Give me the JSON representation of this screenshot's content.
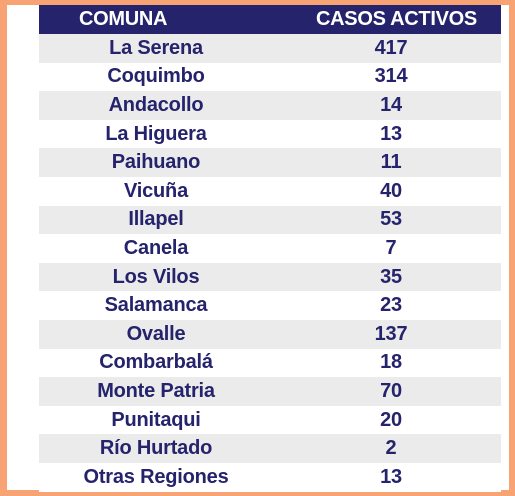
{
  "table": {
    "headers": [
      "COMUNA",
      "CASOS ACTIVOS"
    ],
    "rows": [
      {
        "comuna": "La Serena",
        "casos": "417"
      },
      {
        "comuna": "Coquimbo",
        "casos": "314"
      },
      {
        "comuna": "Andacollo",
        "casos": "14"
      },
      {
        "comuna": "La Higuera",
        "casos": "13"
      },
      {
        "comuna": "Paihuano",
        "casos": "11"
      },
      {
        "comuna": "Vicuña",
        "casos": "40"
      },
      {
        "comuna": "Illapel",
        "casos": "53"
      },
      {
        "comuna": "Canela",
        "casos": "7"
      },
      {
        "comuna": "Los Vilos",
        "casos": "35"
      },
      {
        "comuna": "Salamanca",
        "casos": "23"
      },
      {
        "comuna": "Ovalle",
        "casos": "137"
      },
      {
        "comuna": "Combarbalá",
        "casos": "18"
      },
      {
        "comuna": "Monte Patria",
        "casos": "70"
      },
      {
        "comuna": "Punitaqui",
        "casos": "20"
      },
      {
        "comuna": "Río Hurtado",
        "casos": "2"
      },
      {
        "comuna": "Otras Regiones",
        "casos": "13"
      }
    ]
  },
  "colors": {
    "border": "#f7a373",
    "header_bg": "#25236b",
    "header_text": "#ffffff",
    "row_text": "#25236b",
    "stripe": "#ebebeb"
  }
}
